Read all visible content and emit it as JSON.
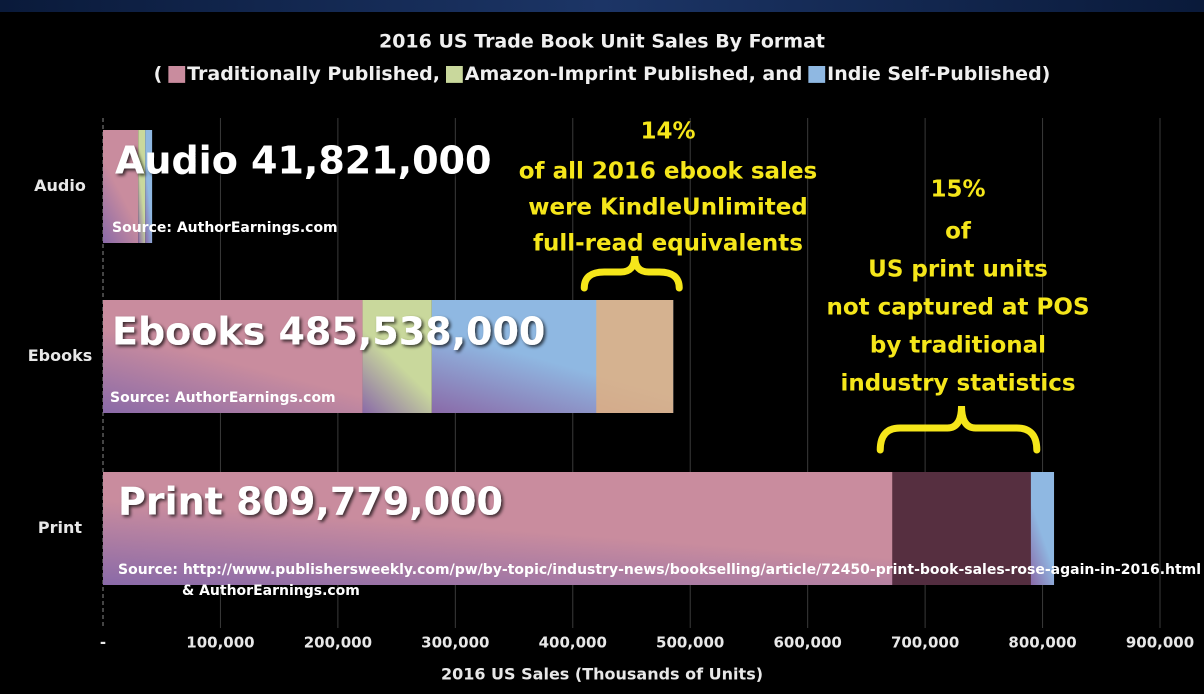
{
  "chart_data": {
    "type": "stacked_bar_horizontal",
    "title": "2016 US Trade Book Unit Sales By Format",
    "legend_separators": [
      "(",
      ",",
      ", and",
      ")"
    ],
    "categories": [
      "Audio",
      "Ebooks",
      "Print"
    ],
    "series": [
      {
        "name": "Traditionally Published",
        "color": "#c98c9e",
        "values": [
          30000,
          221000,
          790000
        ]
      },
      {
        "name": "Amazon-Imprint Published",
        "color": "#c9d89c",
        "values": [
          6000,
          59000,
          0
        ]
      },
      {
        "name": "Indie Self-Published",
        "color": "#8fb8e2",
        "values": [
          5821,
          205538,
          19779
        ]
      }
    ],
    "bar_labels": [
      "Audio 41,821,000",
      "Ebooks 485,538,000",
      "Print 809,779,000"
    ],
    "sources": [
      [
        "Source: AuthorEarnings.com"
      ],
      [
        "Source: AuthorEarnings.com"
      ],
      [
        "Source: http://www.publishersweekly.com/pw/by-topic/industry-news/bookselling/article/72450-print-book-sales-rose-again-in-2016.html",
        "& AuthorEarnings.com"
      ]
    ],
    "annotations": [
      {
        "category": 1,
        "range": [
          420000,
          485538
        ],
        "color": "#e6b07c",
        "lines": [
          "14%",
          "of all 2016 ebook sales",
          "were KindleUnlimited",
          "full-read equivalents"
        ]
      },
      {
        "category": 2,
        "range": [
          672000,
          790000
        ],
        "color": "#3a1828",
        "lines": [
          "15%",
          "of",
          "US print units",
          "not captured at POS",
          "by traditional",
          "industry statistics"
        ]
      }
    ],
    "xlabel": "2016 US Sales (Thousands of Units)",
    "xlim": [
      0,
      900000
    ],
    "xticks": [
      {
        "value": 0,
        "label": "-"
      },
      {
        "value": 100000,
        "label": "100,000"
      },
      {
        "value": 200000,
        "label": "200,000"
      },
      {
        "value": 300000,
        "label": "300,000"
      },
      {
        "value": 400000,
        "label": "400,000"
      },
      {
        "value": 500000,
        "label": "500,000"
      },
      {
        "value": 600000,
        "label": "600,000"
      },
      {
        "value": 700000,
        "label": "700,000"
      },
      {
        "value": 800000,
        "label": "800,000"
      },
      {
        "value": 900000,
        "label": "900,000"
      }
    ],
    "grid": true
  }
}
